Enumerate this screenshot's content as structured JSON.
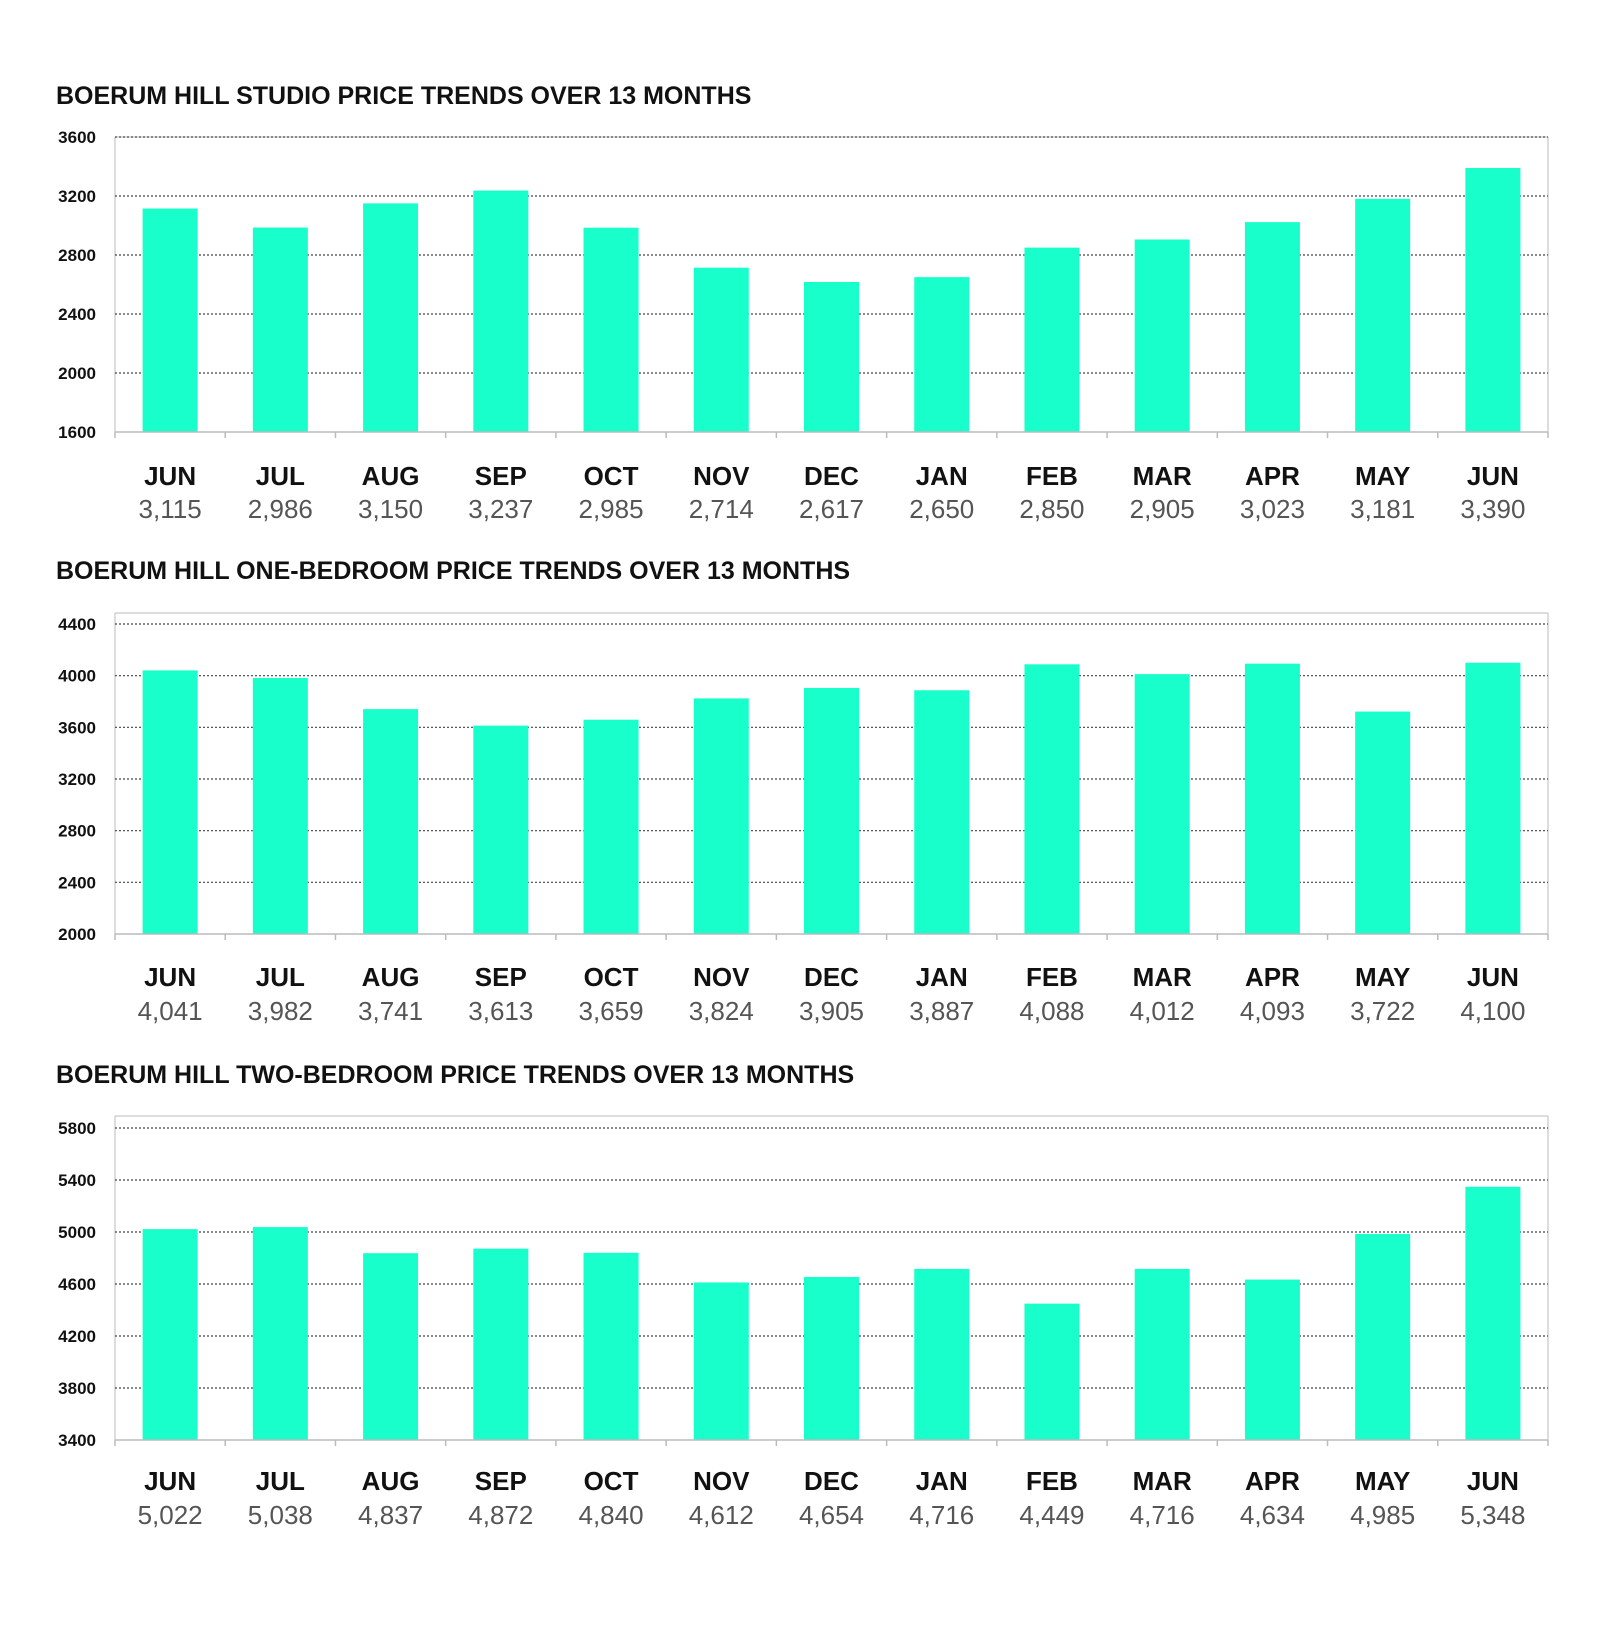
{
  "colors": {
    "bar": "#19FFCB",
    "grid": "#444444",
    "axis": "#bbbbbb"
  },
  "chart_data": [
    {
      "type": "bar",
      "title": "BOERUM HILL STUDIO PRICE TRENDS OVER 13 MONTHS",
      "categories": [
        "JUN",
        "JUL",
        "AUG",
        "SEP",
        "OCT",
        "NOV",
        "DEC",
        "JAN",
        "FEB",
        "MAR",
        "APR",
        "MAY",
        "JUN"
      ],
      "values": [
        3115,
        2986,
        3150,
        3237,
        2985,
        2714,
        2617,
        2650,
        2850,
        2905,
        3023,
        3181,
        3390
      ],
      "value_labels": [
        "3,115",
        "2,986",
        "3,150",
        "3,237",
        "2,985",
        "2,714",
        "2,617",
        "2,650",
        "2,850",
        "2,905",
        "3,023",
        "3,181",
        "3,390"
      ],
      "yticks": [
        1600,
        2000,
        2400,
        2800,
        3200,
        3600
      ],
      "ylim": [
        1600,
        3600
      ],
      "grid": true,
      "xlabel": "",
      "ylabel": ""
    },
    {
      "type": "bar",
      "title": "BOERUM HILL ONE-BEDROOM PRICE TRENDS OVER 13 MONTHS",
      "categories": [
        "JUN",
        "JUL",
        "AUG",
        "SEP",
        "OCT",
        "NOV",
        "DEC",
        "JAN",
        "FEB",
        "MAR",
        "APR",
        "MAY",
        "JUN"
      ],
      "values": [
        4041,
        3982,
        3741,
        3613,
        3659,
        3824,
        3905,
        3887,
        4088,
        4012,
        4093,
        3722,
        4100
      ],
      "value_labels": [
        "4,041",
        "3,982",
        "3,741",
        "3,613",
        "3,659",
        "3,824",
        "3,905",
        "3,887",
        "4,088",
        "4,012",
        "4,093",
        "3,722",
        "4,100"
      ],
      "yticks": [
        2000,
        2400,
        2800,
        3200,
        3600,
        4000,
        4400
      ],
      "ylim": [
        2000,
        4400
      ],
      "grid": true,
      "xlabel": "",
      "ylabel": ""
    },
    {
      "type": "bar",
      "title": "BOERUM HILL TWO-BEDROOM PRICE TRENDS OVER 13 MONTHS",
      "categories": [
        "JUN",
        "JUL",
        "AUG",
        "SEP",
        "OCT",
        "NOV",
        "DEC",
        "JAN",
        "FEB",
        "MAR",
        "APR",
        "MAY",
        "JUN"
      ],
      "values": [
        5022,
        5038,
        4837,
        4872,
        4840,
        4612,
        4654,
        4716,
        4449,
        4716,
        4634,
        4985,
        5348
      ],
      "value_labels": [
        "5,022",
        "5,038",
        "4,837",
        "4,872",
        "4,840",
        "4,612",
        "4,654",
        "4,716",
        "4,449",
        "4,716",
        "4,634",
        "4,985",
        "5,348"
      ],
      "yticks": [
        3400,
        3800,
        4200,
        4600,
        5000,
        5400,
        5800
      ],
      "ylim": [
        3400,
        5800
      ],
      "grid": true,
      "xlabel": "",
      "ylabel": ""
    }
  ]
}
